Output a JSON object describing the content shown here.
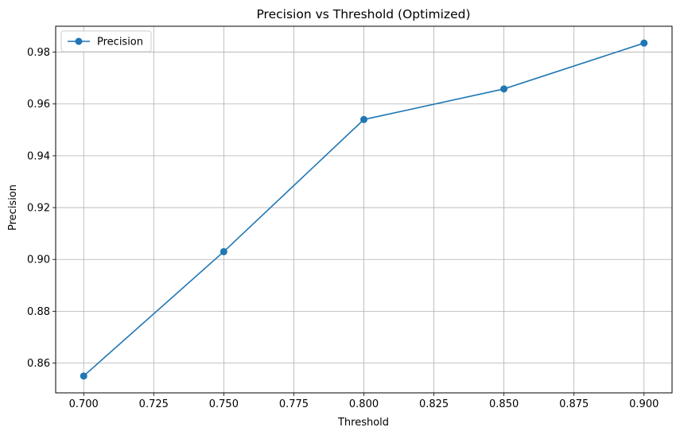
{
  "chart_data": {
    "type": "line",
    "title": "Precision vs Threshold (Optimized)",
    "xlabel": "Threshold",
    "ylabel": "Precision",
    "xlim": [
      0.69,
      0.91
    ],
    "ylim": [
      0.8485,
      0.99
    ],
    "x": [
      0.7,
      0.75,
      0.8,
      0.85,
      0.9
    ],
    "series": [
      {
        "name": "Precision",
        "values": [
          0.855,
          0.903,
          0.954,
          0.9658,
          0.9835
        ]
      }
    ],
    "xticks": [
      0.7,
      0.725,
      0.75,
      0.775,
      0.8,
      0.825,
      0.85,
      0.875,
      0.9
    ],
    "xtick_labels": [
      "0.700",
      "0.725",
      "0.750",
      "0.775",
      "0.800",
      "0.825",
      "0.850",
      "0.875",
      "0.900"
    ],
    "yticks": [
      0.86,
      0.88,
      0.9,
      0.92,
      0.94,
      0.96,
      0.98
    ],
    "ytick_labels": [
      "0.86",
      "0.88",
      "0.90",
      "0.92",
      "0.94",
      "0.96",
      "0.98"
    ],
    "grid": true,
    "legend_position": "top-left",
    "colors": {
      "line": "#1f77b4",
      "grid": "#b0b0b0",
      "axes": "#000000"
    },
    "marker": "circle"
  }
}
